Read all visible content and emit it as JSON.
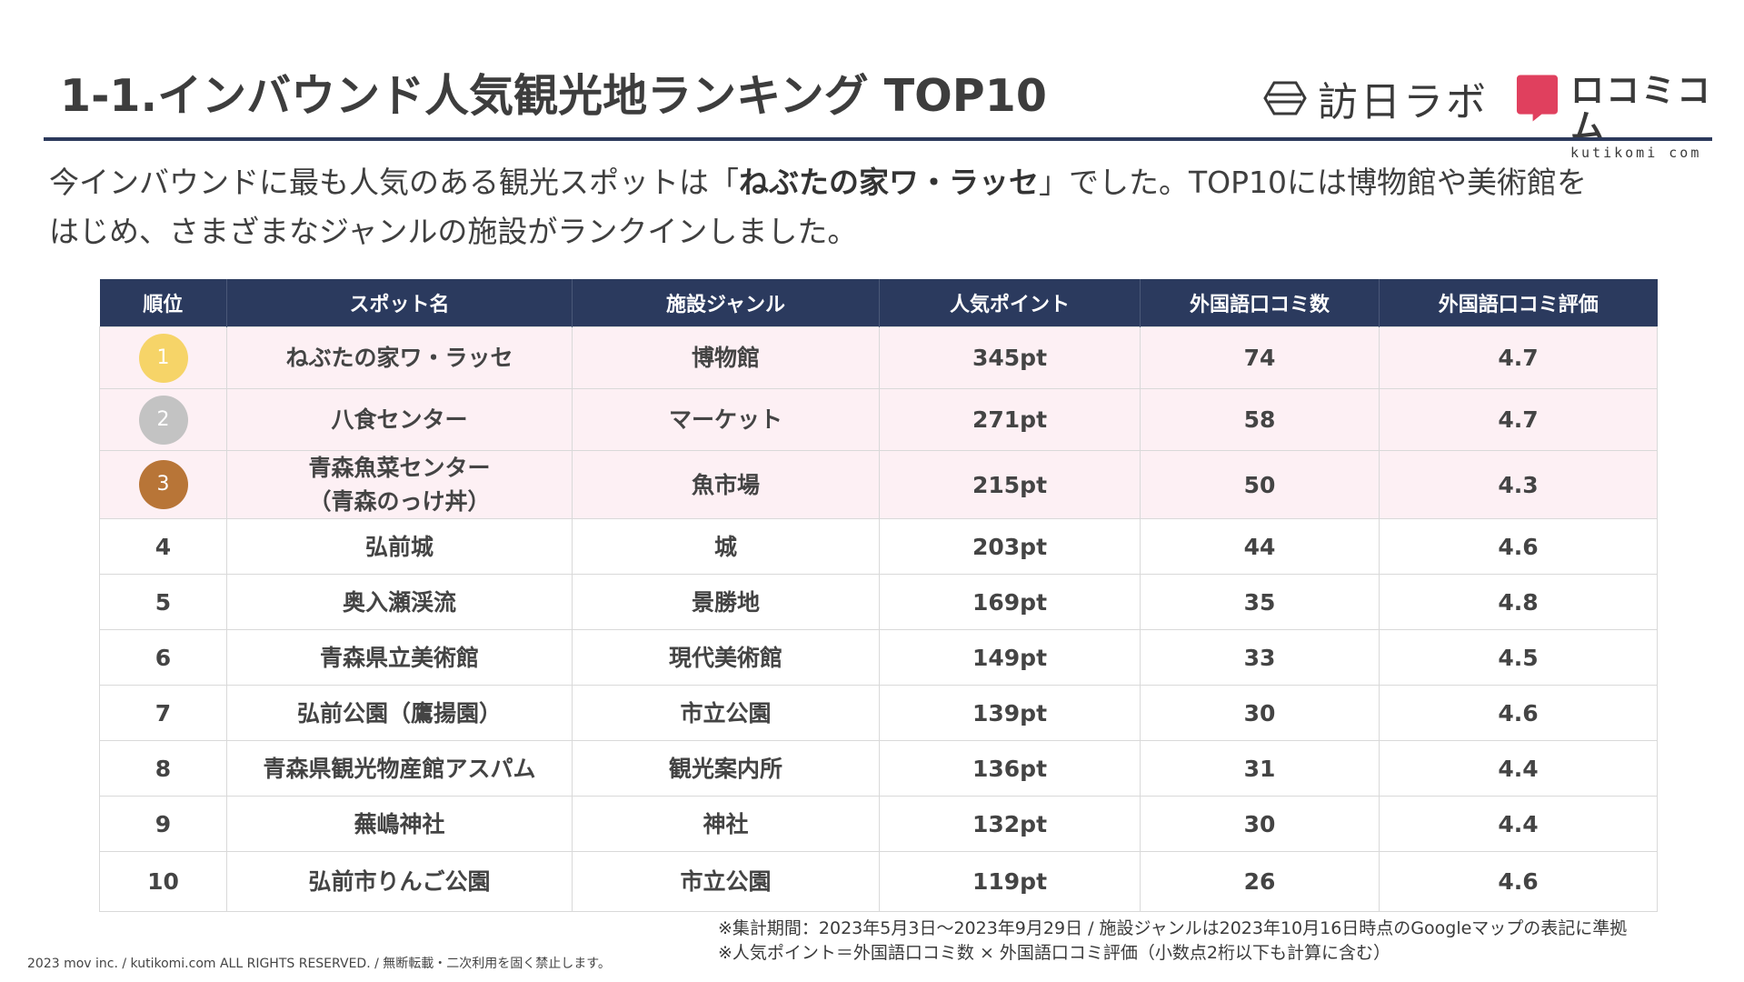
{
  "title": "1-1.インバウンド人気観光地ランキング TOP10",
  "logos": {
    "hojin_text": "訪日ラボ",
    "kuchikomi_main": "ロコミコム",
    "kuchikomi_sub": "kutikomi com",
    "kuchikomi_color": "#e0405e"
  },
  "lead": {
    "before": "今インバウンドに最も人気のある観光スポットは「",
    "highlight": "ねぶたの家ワ・ラッセ",
    "after_line1": "」でした。TOP10には博物館や美術館を",
    "line2": "はじめ、さまざまなジャンルの施設がランクインしました。"
  },
  "table": {
    "headers": [
      "順位",
      "スポット名",
      "施設ジャンル",
      "人気ポイント",
      "外国語口コミ数",
      "外国語口コミ評価"
    ],
    "rows": [
      {
        "rank": "1",
        "spot": "ねぶたの家ワ・ラッセ",
        "genre": "博物館",
        "points": "345pt",
        "reviews": "74",
        "rating": "4.7",
        "medal_color": "#f6d468"
      },
      {
        "rank": "2",
        "spot": "八食センター",
        "genre": "マーケット",
        "points": "271pt",
        "reviews": "58",
        "rating": "4.7",
        "medal_color": "#c3c3c3"
      },
      {
        "rank": "3",
        "spot": "青森魚菜センター\n（青森のっけ丼）",
        "genre": "魚市場",
        "points": "215pt",
        "reviews": "50",
        "rating": "4.3",
        "medal_color": "#b87537"
      },
      {
        "rank": "4",
        "spot": "弘前城",
        "genre": "城",
        "points": "203pt",
        "reviews": "44",
        "rating": "4.6"
      },
      {
        "rank": "5",
        "spot": "奥入瀬渓流",
        "genre": "景勝地",
        "points": "169pt",
        "reviews": "35",
        "rating": "4.8"
      },
      {
        "rank": "6",
        "spot": "青森県立美術館",
        "genre": "現代美術館",
        "points": "149pt",
        "reviews": "33",
        "rating": "4.5"
      },
      {
        "rank": "7",
        "spot": "弘前公園（鷹揚園）",
        "genre": "市立公園",
        "points": "139pt",
        "reviews": "30",
        "rating": "4.6"
      },
      {
        "rank": "8",
        "spot": "青森県観光物産館アスパム",
        "genre": "観光案内所",
        "points": "136pt",
        "reviews": "31",
        "rating": "4.4"
      },
      {
        "rank": "9",
        "spot": "蕪嶋神社",
        "genre": "神社",
        "points": "132pt",
        "reviews": "30",
        "rating": "4.4"
      },
      {
        "rank": "10",
        "spot": "弘前市りんご公園",
        "genre": "市立公園",
        "points": "119pt",
        "reviews": "26",
        "rating": "4.6"
      }
    ]
  },
  "notes": [
    "※集計期間：2023年5月3日～2023年9月29日 / 施設ジャンルは2023年10月16日時点のGoogleマップの表記に準拠",
    "※人気ポイント＝外国語口コミ数 × 外国語口コミ評価（小数点2桁以下も計算に含む）"
  ],
  "copyright": "2023 mov inc. / kutikomi.com ALL RIGHTS RESERVED. / 無断転載・二次利用を固く禁止します。"
}
